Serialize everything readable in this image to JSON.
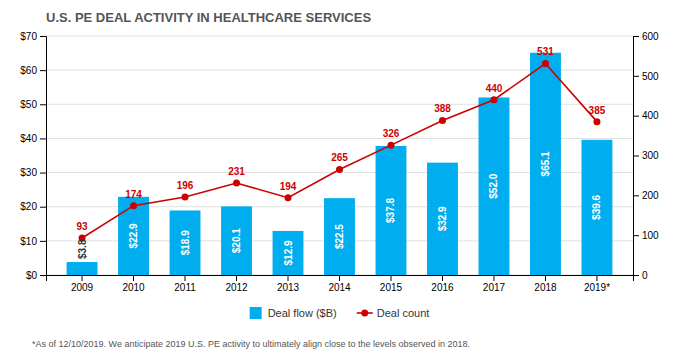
{
  "chart_data": {
    "type": "bar",
    "title": "U.S. PE DEAL ACTIVITY IN HEALTHCARE SERVICES",
    "categories": [
      "2009",
      "2010",
      "2011",
      "2012",
      "2013",
      "2014",
      "2015",
      "2016",
      "2017",
      "2018",
      "2019*"
    ],
    "series": [
      {
        "name": "Deal flow ($B)",
        "type": "bar",
        "color": "#00aeef",
        "values": [
          3.8,
          22.9,
          18.9,
          20.1,
          12.9,
          22.5,
          37.8,
          32.9,
          52.0,
          65.1,
          39.6
        ],
        "value_labels": [
          "$3.8",
          "$22.9",
          "$18.9",
          "$20.1",
          "$12.9",
          "$22.5",
          "$37.8",
          "$32.9",
          "$52.0",
          "$65.1",
          "$39.6"
        ]
      },
      {
        "name": "Deal count",
        "type": "line",
        "color": "#cc0000",
        "marker": "circle",
        "axis": "y2",
        "values": [
          93,
          174,
          196,
          231,
          194,
          265,
          326,
          388,
          440,
          531,
          385
        ]
      }
    ],
    "ylim": [
      0,
      70
    ],
    "yticks": [
      {
        "value": 0,
        "label": "$0"
      },
      {
        "value": 10,
        "label": "$10"
      },
      {
        "value": 20,
        "label": "$20"
      },
      {
        "value": 30,
        "label": "$30"
      },
      {
        "value": 40,
        "label": "$40"
      },
      {
        "value": 50,
        "label": "$50"
      },
      {
        "value": 60,
        "label": "$60"
      },
      {
        "value": 70,
        "label": "$70"
      }
    ],
    "y2lim": [
      0,
      600
    ],
    "y2ticks": [
      0,
      100,
      200,
      300,
      400,
      500,
      600
    ],
    "grid": true,
    "data_labels": true,
    "legend": "bottom",
    "annotations": [
      "*As of 12/10/2019. We anticipate 2019 U.S. PE activity to ultimately align close to the levels observed in 2018."
    ]
  }
}
